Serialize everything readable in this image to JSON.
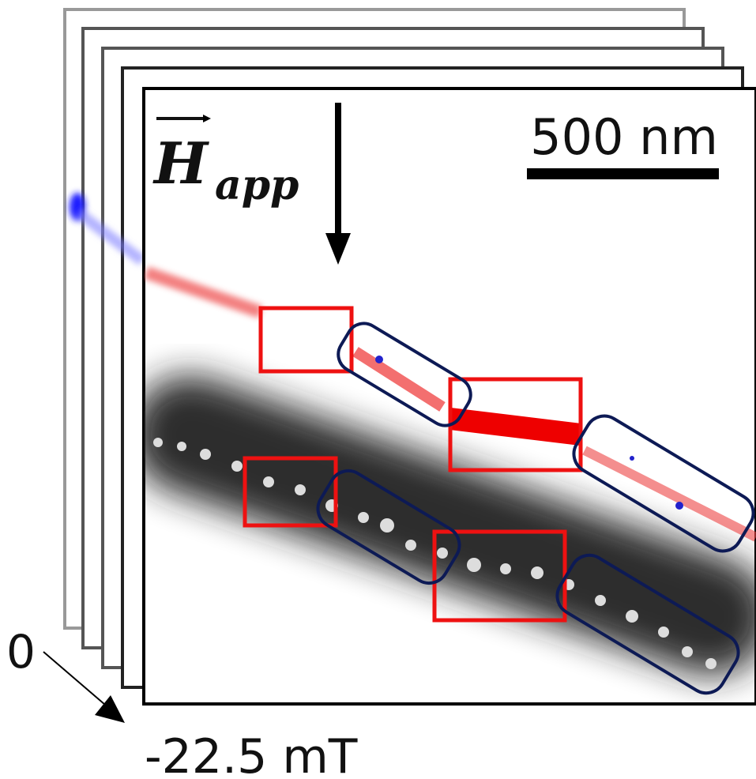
{
  "field_label": {
    "symbol": "H",
    "subscript": "app"
  },
  "scale_bar": "500 nm",
  "field_axis": {
    "start": "0",
    "end": "-22.5 mT"
  }
}
